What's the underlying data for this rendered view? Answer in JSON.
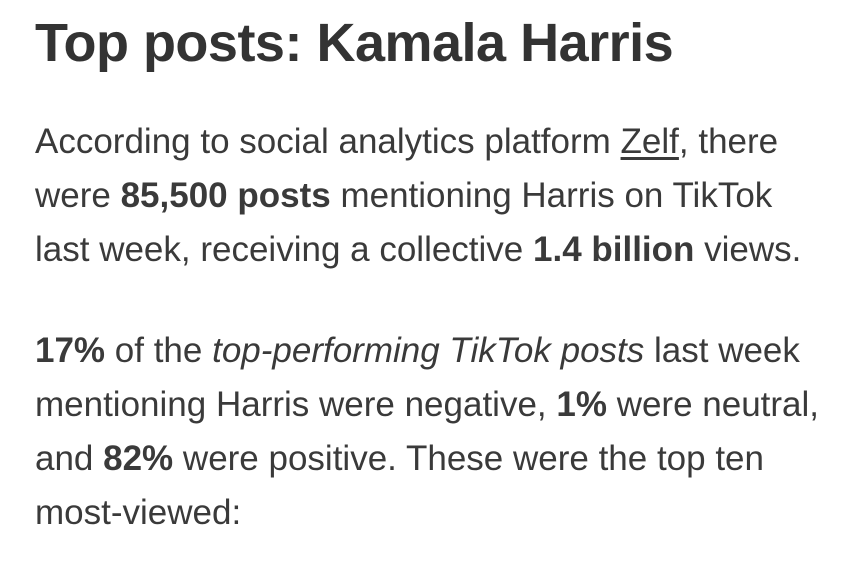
{
  "article": {
    "heading": "Top posts: Kamala Harris",
    "colors": {
      "heading": "#333333",
      "text": "#3a3a3a",
      "background": "#ffffff"
    },
    "stats": {
      "posts_mentioning": "85,500 posts",
      "total_views": "1.4 billion",
      "negative_pct": "17%",
      "neutral_pct": "1%",
      "positive_pct": "82%"
    },
    "link": {
      "label": "Zelf"
    },
    "paragraphs": [
      {
        "name": "overview-paragraph",
        "segments": [
          {
            "text": "According to social analytics platform "
          },
          {
            "text": "Zelf",
            "style": "link",
            "name": "zelf-link"
          },
          {
            "text": ", there were "
          },
          {
            "text": "85,500 posts",
            "style": "bold"
          },
          {
            "text": " mentioning Harris on TikTok last week, receiving a collective "
          },
          {
            "text": "1.4 billion",
            "style": "bold"
          },
          {
            "text": " views."
          }
        ]
      },
      {
        "name": "sentiment-paragraph",
        "segments": [
          {
            "text": "17%",
            "style": "bold"
          },
          {
            "text": " of the "
          },
          {
            "text": "top-performing TikTok posts",
            "style": "italic"
          },
          {
            "text": " last week mentioning Harris were negative, "
          },
          {
            "text": "1%",
            "style": "bold"
          },
          {
            "text": " were neutral, and "
          },
          {
            "text": "82%",
            "style": "bold"
          },
          {
            "text": " were positive. These were the top ten most-viewed:"
          }
        ]
      }
    ]
  }
}
